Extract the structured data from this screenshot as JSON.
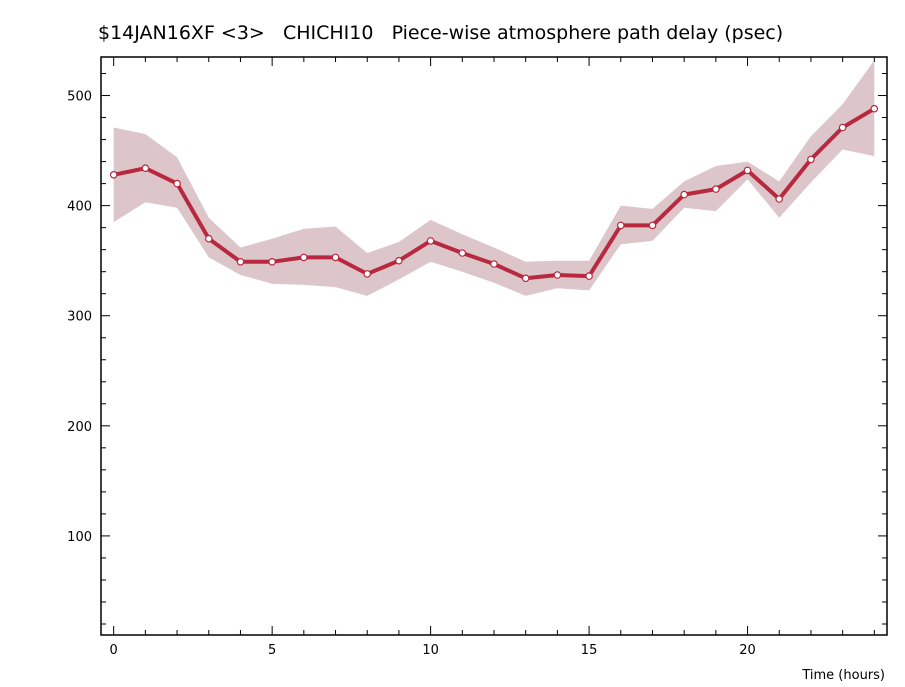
{
  "chart_data": {
    "type": "line",
    "title": "$14JAN16XF <3>   CHICHI10   Piece-wise atmosphere path delay (psec)",
    "xlabel": "Time (hours)",
    "ylabel": "",
    "xlim": [
      -0.4,
      24.4
    ],
    "ylim": [
      10,
      535
    ],
    "x_ticks": [
      0,
      5,
      10,
      15,
      20
    ],
    "y_ticks": [
      100,
      200,
      300,
      400,
      500
    ],
    "grid": false,
    "series": [
      {
        "color": "#b8283f",
        "band_color": "#dcc6c9",
        "x": [
          0,
          1,
          2,
          3,
          4,
          5,
          6,
          7,
          8,
          9,
          10,
          11,
          12,
          13,
          14,
          15,
          16,
          17,
          18,
          19,
          20,
          21,
          22,
          23,
          24
        ],
        "values": [
          428,
          434,
          420,
          370,
          349,
          349,
          353,
          353,
          338,
          350,
          368,
          357,
          347,
          334,
          337,
          336,
          382,
          382,
          410,
          415,
          432,
          406,
          442,
          471,
          488
        ],
        "upper": [
          471,
          465,
          444,
          389,
          362,
          370,
          379,
          381,
          357,
          367,
          387,
          374,
          362,
          349,
          350,
          350,
          400,
          397,
          422,
          436,
          440,
          422,
          463,
          492,
          532
        ],
        "lower": [
          385,
          403,
          398,
          353,
          337,
          329,
          328,
          326,
          318,
          333,
          349,
          340,
          330,
          318,
          325,
          323,
          365,
          368,
          398,
          395,
          424,
          389,
          421,
          451,
          445
        ]
      }
    ]
  }
}
